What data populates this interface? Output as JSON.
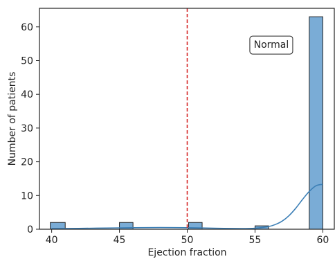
{
  "chart_data": {
    "type": "bar",
    "subtype": "histogram_with_kde",
    "title": "",
    "xlabel": "Ejection fraction",
    "ylabel": "Number of patients",
    "xlim": [
      39.1,
      60.9
    ],
    "ylim": [
      0,
      65.5
    ],
    "xticks": [
      40,
      45,
      50,
      55,
      60
    ],
    "yticks": [
      0,
      10,
      20,
      30,
      40,
      50,
      60
    ],
    "bins": [
      {
        "x0": 39.9,
        "x1": 41.0,
        "count": 2
      },
      {
        "x0": 45.0,
        "x1": 46.0,
        "count": 2
      },
      {
        "x0": 50.1,
        "x1": 51.1,
        "count": 2
      },
      {
        "x0": 55.0,
        "x1": 56.0,
        "count": 1
      },
      {
        "x0": 59.0,
        "x1": 60.0,
        "count": 63
      }
    ],
    "kde": {
      "x": [
        40,
        42,
        44,
        46,
        48,
        50,
        52,
        54,
        55,
        56,
        56.5,
        57,
        57.5,
        58,
        58.5,
        59,
        59.5,
        60
      ],
      "y": [
        0.2,
        0.25,
        0.35,
        0.45,
        0.5,
        0.45,
        0.3,
        0.2,
        0.3,
        0.8,
        1.4,
        2.4,
        4.0,
        6.2,
        8.8,
        11.2,
        12.9,
        13.3
      ]
    },
    "reference_line": {
      "x": 50,
      "color": "#d62728",
      "style": "dashed"
    },
    "annotation": {
      "text": "Normal",
      "x": 56.2,
      "y": 54.6
    },
    "colors": {
      "bar_fill": "#7aacd6",
      "bar_edge": "#222222",
      "kde": "#3b7fb6",
      "axis": "#222222"
    },
    "grid": false
  }
}
